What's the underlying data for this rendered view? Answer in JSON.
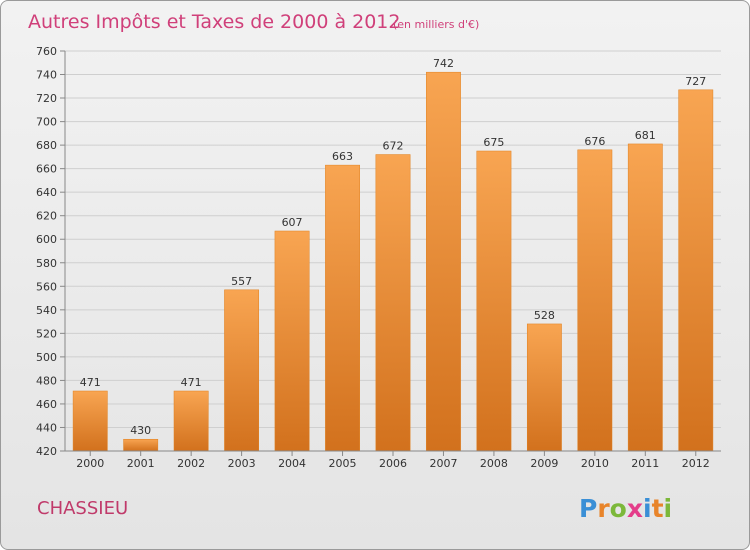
{
  "chart_data": {
    "type": "bar",
    "title": "Autres Impôts et Taxes de 2000 à 2012",
    "subtitle": "(en milliers d'€)",
    "categories": [
      "2000",
      "2001",
      "2002",
      "2003",
      "2004",
      "2005",
      "2006",
      "2007",
      "2008",
      "2009",
      "2010",
      "2011",
      "2012"
    ],
    "values": [
      471,
      430,
      471,
      557,
      607,
      663,
      672,
      742,
      675,
      528,
      676,
      681,
      727
    ],
    "ylim": [
      420,
      760
    ],
    "yticks": [
      420,
      440,
      460,
      480,
      500,
      520,
      540,
      560,
      580,
      600,
      620,
      640,
      660,
      680,
      700,
      720,
      740,
      760
    ],
    "grid": true,
    "bar_color": "#f0922e",
    "location": "CHASSIEU",
    "logo": {
      "letters": [
        "P",
        "r",
        "o",
        "x",
        "i",
        "t",
        "i"
      ],
      "colors": [
        "#3a8fd6",
        "#e8842a",
        "#7cb83a",
        "#e43d8a",
        "#3a8fd6",
        "#e8842a",
        "#7cb83a"
      ]
    }
  }
}
